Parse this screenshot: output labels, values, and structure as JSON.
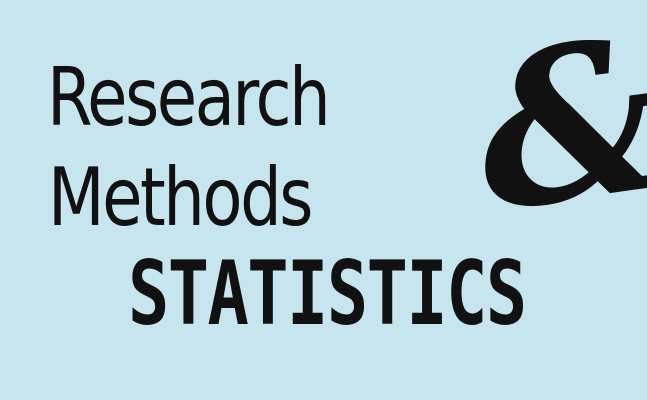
{
  "title": {
    "line1": "Research",
    "line2": "Methods",
    "ampersand": "&",
    "line3": "STATISTICS"
  },
  "colors": {
    "background": "#c7e5ef",
    "text": "#111111"
  }
}
